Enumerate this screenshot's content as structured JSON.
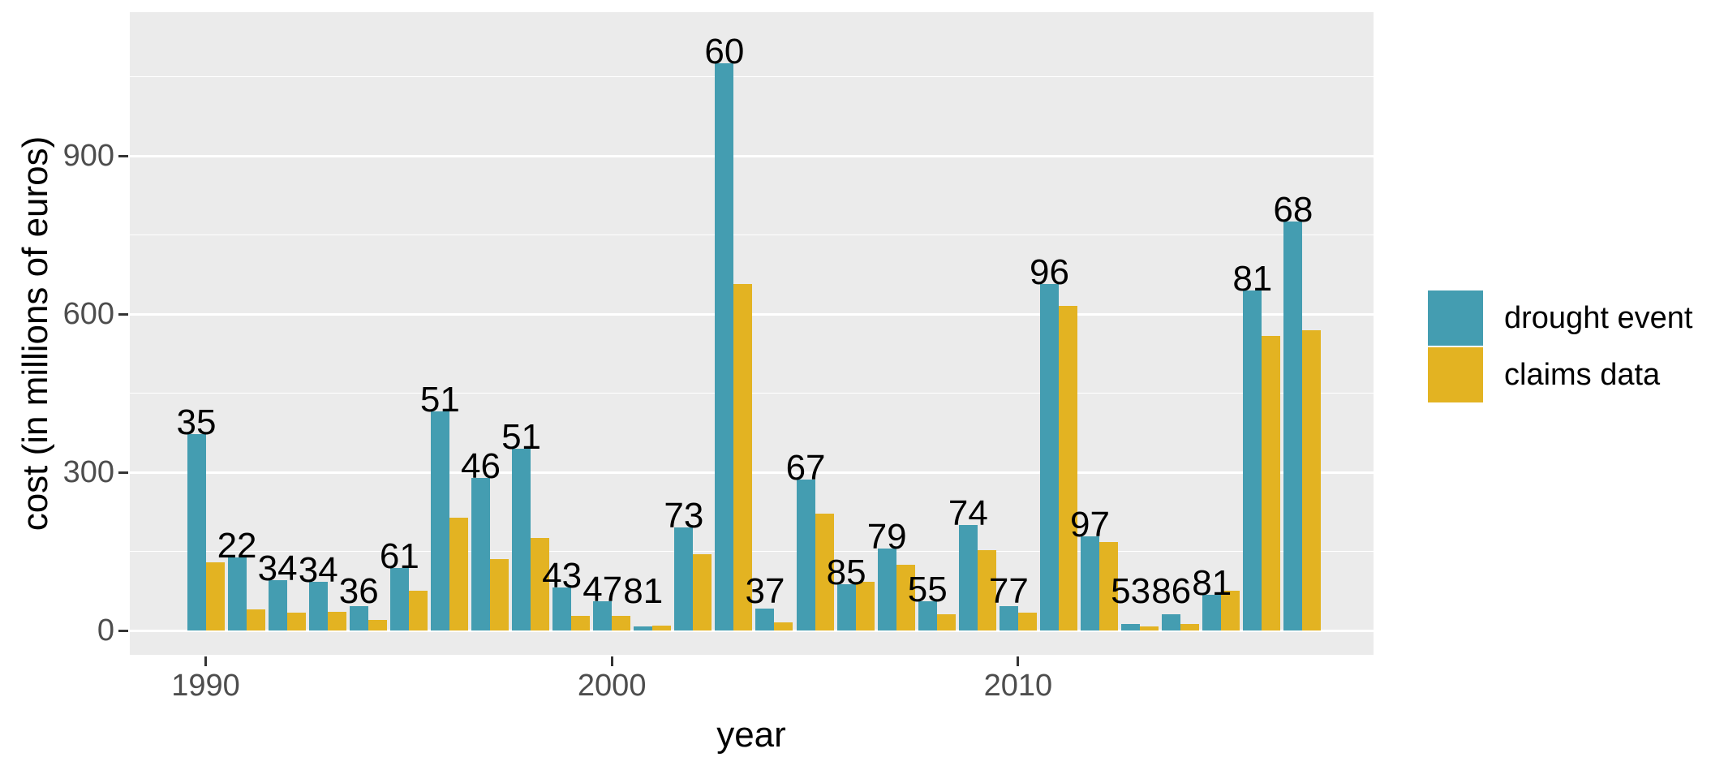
{
  "chart_data": {
    "type": "bar",
    "title": "",
    "xlabel": "year",
    "ylabel": "cost (in millions of euros)",
    "categories": [
      1990,
      1991,
      1992,
      1993,
      1994,
      1995,
      1996,
      1997,
      1998,
      1999,
      2000,
      2001,
      2002,
      2003,
      2004,
      2005,
      2006,
      2007,
      2008,
      2009,
      2010,
      2011,
      2012,
      2013,
      2014,
      2015,
      2016,
      2017
    ],
    "series": [
      {
        "name": "drought event",
        "color": "#449DB1",
        "values": [
          373,
          139,
          95,
          92,
          46,
          118,
          416,
          289,
          344,
          82,
          56,
          8,
          196,
          1075,
          41,
          286,
          87,
          155,
          55,
          200,
          46,
          657,
          178,
          12,
          31,
          67,
          645,
          776
        ]
      },
      {
        "name": "claims data",
        "color": "#E3B322",
        "values": [
          130,
          40,
          34,
          35,
          20,
          75,
          214,
          135,
          175,
          28,
          27,
          10,
          145,
          657,
          15,
          222,
          92,
          124,
          31,
          152,
          34,
          615,
          168,
          8,
          13,
          76,
          558,
          569
        ]
      }
    ],
    "bar_labels": [
      "35",
      "22",
      "34",
      "34",
      "36",
      "61",
      "51",
      "46",
      "51",
      "43",
      "47",
      "81",
      "73",
      "60",
      "37",
      "67",
      "85",
      "79",
      "55",
      "74",
      "77",
      "96",
      "97",
      "53",
      "86",
      "81",
      "81",
      "68"
    ],
    "y_ticks": [
      0,
      300,
      600,
      900
    ],
    "y_minor_ticks": [
      150,
      450,
      750,
      1050
    ],
    "x_ticks": [
      1990,
      2000,
      2010
    ],
    "ylim": [
      0,
      1170
    ],
    "grid": true,
    "legend_position": "right",
    "panel_bg": "#EBEBEB",
    "gridline_color": "#FFFFFF",
    "tick_label_color": "#4D4D4D",
    "axis_title_color": "#000000",
    "bar_label_color": "#000000"
  }
}
